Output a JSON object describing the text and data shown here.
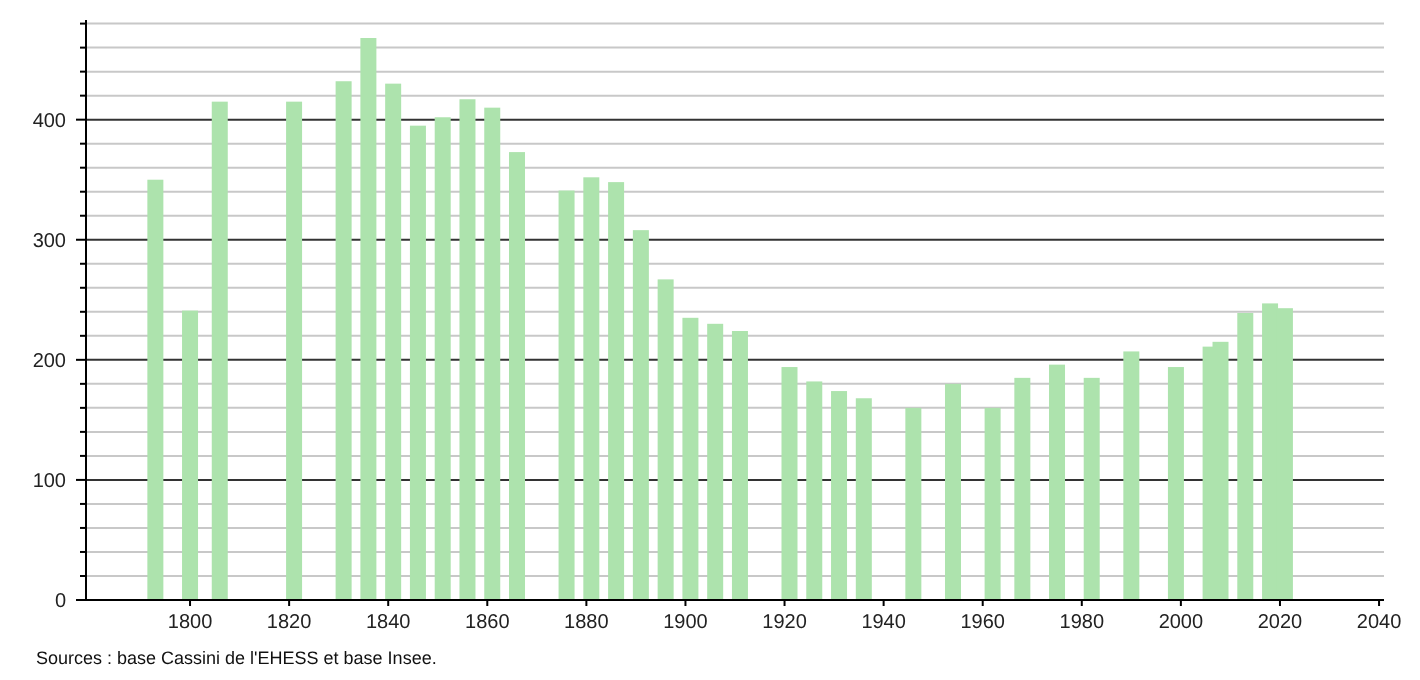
{
  "chart_data": {
    "type": "bar",
    "x": [
      1793,
      1800,
      1806,
      1821,
      1831,
      1836,
      1841,
      1846,
      1851,
      1856,
      1861,
      1866,
      1876,
      1881,
      1886,
      1891,
      1896,
      1901,
      1906,
      1911,
      1921,
      1926,
      1931,
      1936,
      1946,
      1954,
      1962,
      1968,
      1975,
      1982,
      1990,
      1999,
      2006,
      2008,
      2013,
      2018,
      2021
    ],
    "values": [
      350,
      241,
      415,
      415,
      432,
      468,
      430,
      395,
      402,
      417,
      410,
      373,
      341,
      352,
      348,
      308,
      267,
      235,
      230,
      224,
      194,
      182,
      174,
      168,
      160,
      180,
      160,
      185,
      196,
      185,
      207,
      194,
      211,
      215,
      239,
      247,
      243
    ],
    "color": "#ade3ad",
    "xlim": [
      1779,
      2041
    ],
    "xticks": [
      1800,
      1820,
      1840,
      1860,
      1880,
      1900,
      1920,
      1940,
      1960,
      1980,
      2000,
      2020,
      2040
    ],
    "ylim": [
      0,
      483
    ],
    "yticks": [
      0,
      {
        "value": 20,
        "label": null
      },
      {
        "value": 40,
        "label": null
      },
      {
        "value": 60,
        "label": null
      },
      {
        "value": 80,
        "label": null
      },
      100,
      {
        "value": 120,
        "label": null
      },
      {
        "value": 140,
        "label": null
      },
      {
        "value": 160,
        "label": null
      },
      {
        "value": 180,
        "label": null
      },
      200,
      {
        "value": 220,
        "label": null
      },
      {
        "value": 240,
        "label": null
      },
      {
        "value": 260,
        "label": null
      },
      {
        "value": 280,
        "label": null
      },
      300,
      {
        "value": 320,
        "label": null
      },
      {
        "value": 340,
        "label": null
      },
      {
        "value": 360,
        "label": null
      },
      {
        "value": 380,
        "label": null
      },
      400,
      {
        "value": 420,
        "label": null
      },
      {
        "value": 440,
        "label": null
      },
      {
        "value": 460,
        "label": null
      },
      {
        "value": 480,
        "label": null
      }
    ],
    "grid": "y",
    "annotations": [
      "Sources : base Cassini de l'EHESS et base Insee."
    ]
  }
}
